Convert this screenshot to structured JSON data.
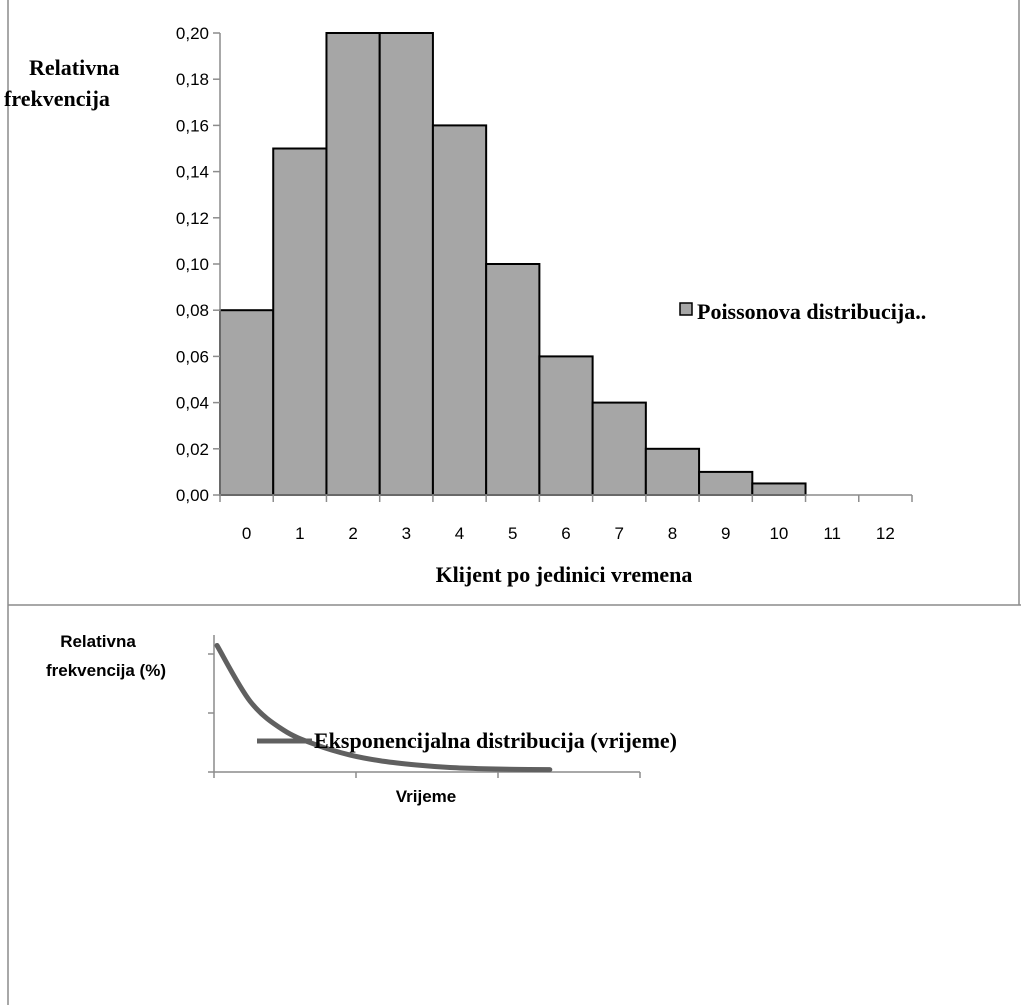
{
  "chart_data": [
    {
      "type": "bar",
      "categories": [
        "0",
        "1",
        "2",
        "3",
        "4",
        "5",
        "6",
        "7",
        "8",
        "9",
        "10",
        "11",
        "12"
      ],
      "series": [
        {
          "name": "Poissonova distribucija..",
          "values": [
            0.08,
            0.15,
            0.2,
            0.2,
            0.16,
            0.1,
            0.06,
            0.04,
            0.02,
            0.01,
            0.005,
            0,
            0
          ]
        }
      ],
      "title": "",
      "ylabel_lines": [
        "Relativna",
        "frekvencija"
      ],
      "xlabel": "Klijent po jedinici vremena",
      "ylim": [
        0,
        0.2
      ],
      "yticks": [
        "0,00",
        "0,02",
        "0,04",
        "0,06",
        "0,08",
        "0,10",
        "0,12",
        "0,14",
        "0,16",
        "0,18",
        "0,20"
      ],
      "grid": false,
      "legend_position": "right",
      "bar_color": "#a6a6a6",
      "edge_color": "#000000"
    },
    {
      "type": "line",
      "x": [
        0,
        0.25,
        0.5,
        0.75,
        1,
        1.25,
        1.5,
        1.75,
        2,
        2.25,
        2.5
      ],
      "series": [
        {
          "name": "Eksponencijalna distribucija (vrijeme)",
          "values": [
            1.0,
            0.55,
            0.32,
            0.2,
            0.12,
            0.07,
            0.04,
            0.02,
            0.01,
            0.005,
            0.003
          ]
        }
      ],
      "title": "",
      "ylabel_lines": [
        "Relativna",
        "frekvencija (%)"
      ],
      "xlabel": "Vrijeme",
      "grid": false,
      "legend_position": "center-right",
      "line_color": "#606060"
    }
  ]
}
